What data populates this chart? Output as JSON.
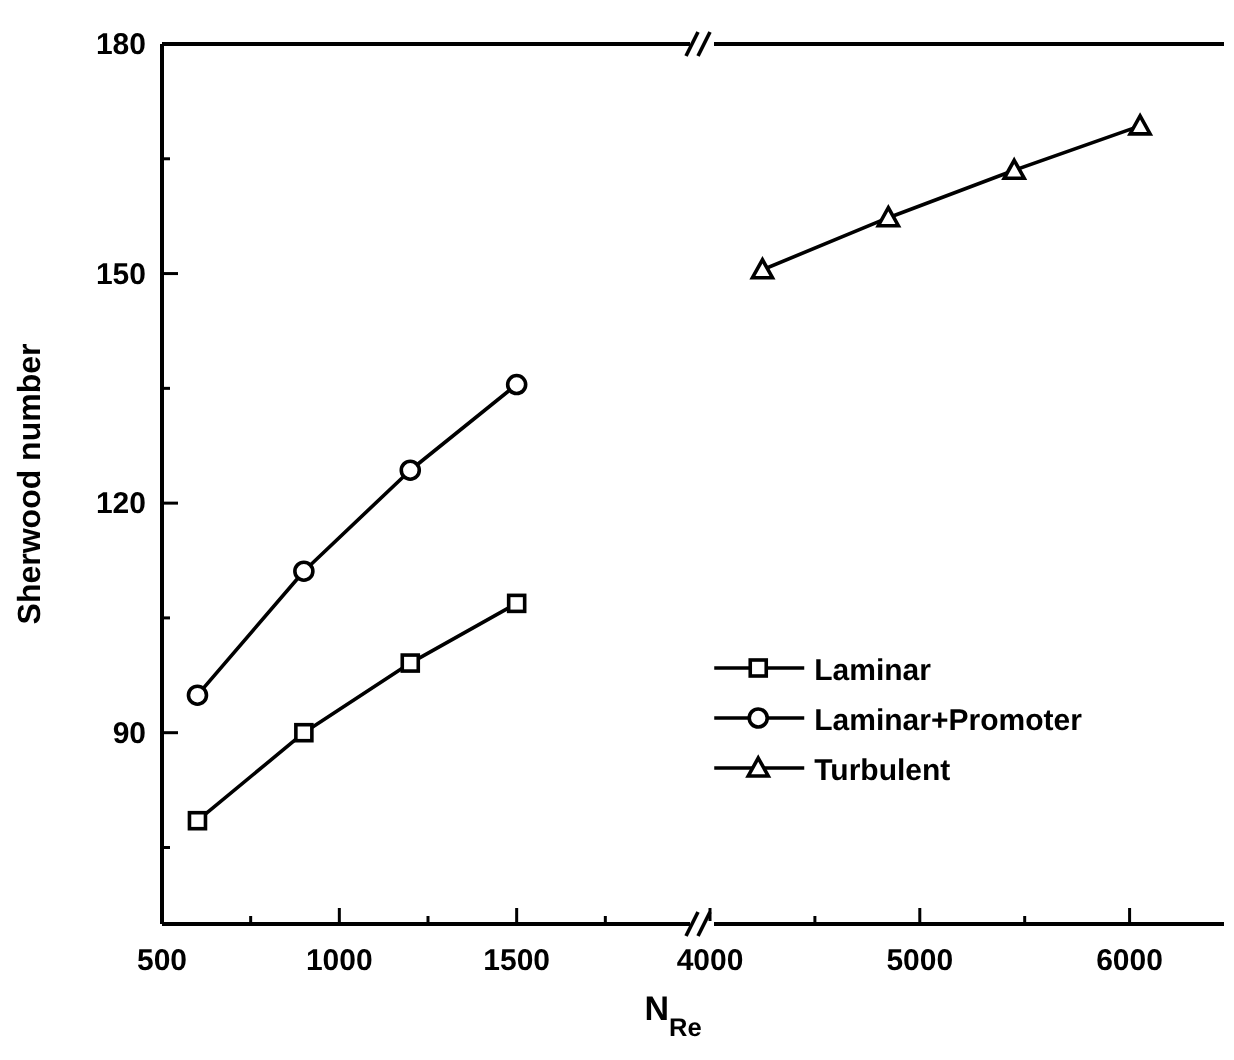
{
  "chart_data": [
    {
      "type": "line",
      "xlabel": "N$_{Re}$",
      "ylabel": "Sherwood number",
      "x": [
        600,
        900,
        1200,
        1500
      ],
      "xlim": [
        500,
        2000
      ],
      "xticks": [
        500,
        {
          "value": 750,
          "label": null
        },
        1000,
        {
          "value": 1250,
          "label": null
        },
        1500,
        {
          "value": 1750,
          "label": null
        }
      ],
      "ylim": [
        65,
        180
      ],
      "yticks": [
        {
          "value": 75,
          "label": null
        },
        90,
        {
          "value": 105,
          "label": null
        },
        120,
        {
          "value": 135,
          "label": null
        },
        150,
        {
          "value": 165,
          "label": null
        },
        180
      ],
      "grid": false,
      "legend": "bottom right",
      "line_style": "solid",
      "series": [
        {
          "name": "Laminar",
          "color": "#000000",
          "marker": "square",
          "values": [
            78.5,
            90,
            99.1,
            106.9
          ]
        },
        {
          "name": "Laminar+Promoter",
          "color": "#000000",
          "marker": "circle",
          "values": [
            94.9,
            111.1,
            124.3,
            135.5
          ]
        }
      ]
    },
    {
      "type": "line",
      "x": [
        4250,
        4850,
        5450,
        6050
      ],
      "xlim": [
        4000,
        6450
      ],
      "xticks": [
        4000,
        {
          "value": 4500,
          "label": null
        },
        5000,
        {
          "value": 5500,
          "label": null
        },
        6000
      ],
      "ylim": [
        65,
        180
      ],
      "tick_labels": "x",
      "grid": false,
      "legend": "bottom left",
      "line_style": "solid",
      "series": [
        {
          "name": "Turbulent",
          "color": "#000000",
          "marker": "triangle",
          "values": [
            150.5,
            157.3,
            163.5,
            169.3
          ]
        }
      ]
    }
  ]
}
